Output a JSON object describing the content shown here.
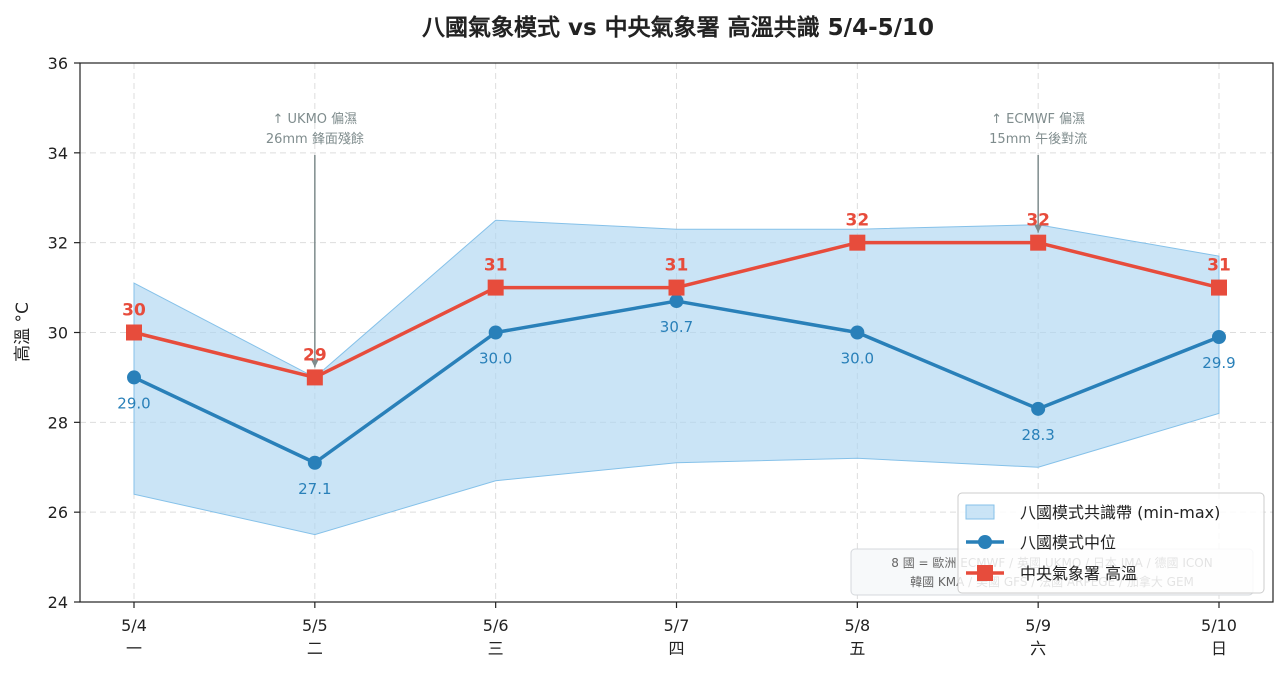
{
  "chart_data": {
    "type": "line",
    "title": "八國氣象模式 vs 中央氣象署 高溫共識 5/4-5/10",
    "ylabel": "高溫 °C",
    "ylim": [
      24,
      36
    ],
    "yticks": [
      "24",
      "26",
      "28",
      "30",
      "32",
      "34",
      "36"
    ],
    "categories": [
      "5/4",
      "5/5",
      "5/6",
      "5/7",
      "5/8",
      "5/9",
      "5/10"
    ],
    "weekdays": [
      "一",
      "二",
      "三",
      "四",
      "五",
      "六",
      "日"
    ],
    "grid": true,
    "legend_position": "lower-right",
    "band": {
      "name": "八國模式共識帶 (min-max)",
      "min": [
        26.4,
        25.5,
        26.7,
        27.1,
        27.2,
        27.0,
        28.2
      ],
      "max": [
        31.1,
        29.0,
        32.5,
        32.3,
        32.3,
        32.4,
        31.7
      ]
    },
    "series": [
      {
        "name": "八國模式中位",
        "values": [
          29.0,
          27.1,
          30.0,
          30.7,
          30.0,
          28.3,
          29.9
        ],
        "labels": [
          "29.0",
          "27.1",
          "30.0",
          "30.7",
          "30.0",
          "28.3",
          "29.9"
        ]
      },
      {
        "name": "中央氣象署 高溫",
        "values": [
          30,
          29,
          31,
          31,
          32,
          32,
          31
        ],
        "labels": [
          "30",
          "29",
          "31",
          "31",
          "32",
          "32",
          "31"
        ]
      }
    ],
    "annotations": [
      {
        "index": 1,
        "line1": "↑ UKMO 偏濕",
        "line2": "26mm 鋒面殘餘"
      },
      {
        "index": 5,
        "line1": "↑ ECMWF 偏濕",
        "line2": "15mm 午後對流"
      }
    ],
    "note": {
      "line1": "8 國 = 歐洲 ECMWF / 英國 UKMO / 日本 JMA / 德國 ICON",
      "line2": "韓國 KMA / 美國 GFS / 法國 ARPEGE / 加拿大 GEM"
    }
  },
  "colors": {
    "median": "#2980b9",
    "cwa": "#e74c3c",
    "band_fill": "#aed6f1",
    "band_edge": "#85c1e9",
    "annotation": "#7f8c8d",
    "grid": "#dddddd"
  }
}
